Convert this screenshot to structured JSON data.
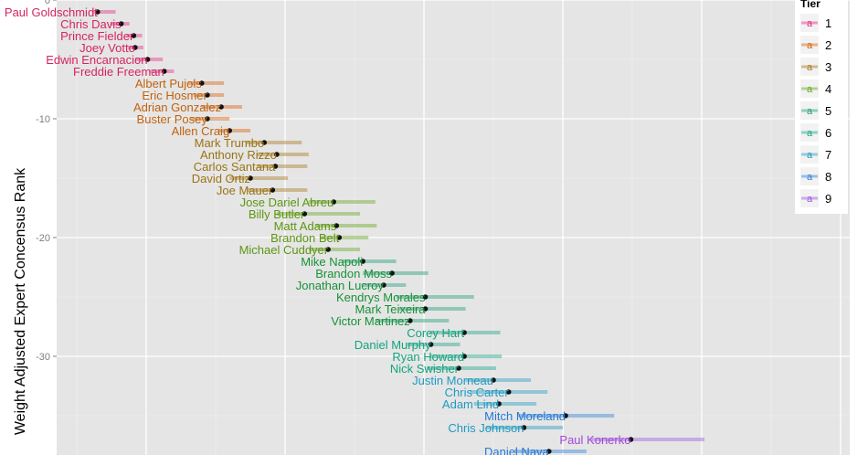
{
  "chart_data": {
    "type": "scatter",
    "title": "",
    "xlabel": "",
    "ylabel": "Weight Adjusted Expert Concensus Rank",
    "ylim": [
      -38.5,
      0.5
    ],
    "y_ticks": [
      -10,
      -20,
      -30
    ],
    "y_tick_labels": [
      "-10",
      "-20",
      "-30"
    ],
    "x_tick_values": [
      1,
      2,
      3,
      4,
      5,
      6
    ],
    "x_range": [
      0.55,
      6.2
    ],
    "grid": true,
    "legend": {
      "title": "Tier",
      "placement": "right",
      "key_glyph": "a",
      "entries": [
        {
          "label": "1",
          "color": "#E7298A"
        },
        {
          "label": "2",
          "color": "#D95F02"
        },
        {
          "label": "3",
          "color": "#A6761D"
        },
        {
          "label": "4",
          "color": "#66A61E"
        },
        {
          "label": "5",
          "color": "#1B9E77"
        },
        {
          "label": "6",
          "color": "#17A589"
        },
        {
          "label": "7",
          "color": "#1F9AC1"
        },
        {
          "label": "8",
          "color": "#2C7FD8"
        },
        {
          "label": "9",
          "color": "#9A57E0"
        }
      ]
    },
    "label_colors": {
      "1": "#D6245F",
      "2": "#C0620E",
      "3": "#9A7412",
      "4": "#5E9512",
      "5": "#169236",
      "6": "#12A47E",
      "7": "#1F9AC1",
      "8": "#2479D6",
      "9": "#A348D8"
    },
    "players": [
      {
        "name": "Paul Goldschmidt",
        "tier": 1,
        "rank": -1,
        "x": 0.65,
        "lo": 0.62,
        "hi": 0.78
      },
      {
        "name": "Chris Davis",
        "tier": 1,
        "rank": -2,
        "x": 0.82,
        "lo": 0.74,
        "hi": 0.88
      },
      {
        "name": "Prince Fielder",
        "tier": 1,
        "rank": -3,
        "x": 0.91,
        "lo": 0.86,
        "hi": 0.97
      },
      {
        "name": "Joey Votto",
        "tier": 1,
        "rank": -4,
        "x": 0.92,
        "lo": 0.87,
        "hi": 0.98
      },
      {
        "name": "Edwin Encarnacion",
        "tier": 1,
        "rank": -5,
        "x": 1.01,
        "lo": 0.92,
        "hi": 1.12
      },
      {
        "name": "Freddie Freeman",
        "tier": 1,
        "rank": -6,
        "x": 1.13,
        "lo": 1.03,
        "hi": 1.2
      },
      {
        "name": "Albert Pujols",
        "tier": 2,
        "rank": -7,
        "x": 1.4,
        "lo": 1.3,
        "hi": 1.56
      },
      {
        "name": "Eric Hosmer",
        "tier": 2,
        "rank": -8,
        "x": 1.44,
        "lo": 1.34,
        "hi": 1.56
      },
      {
        "name": "Adrian Gonzalez",
        "tier": 2,
        "rank": -9,
        "x": 1.54,
        "lo": 1.4,
        "hi": 1.69
      },
      {
        "name": "Buster Posey",
        "tier": 2,
        "rank": -10,
        "x": 1.44,
        "lo": 1.32,
        "hi": 1.6
      },
      {
        "name": "Allen Craig",
        "tier": 2,
        "rank": -11,
        "x": 1.6,
        "lo": 1.52,
        "hi": 1.75
      },
      {
        "name": "Mark Trumbo",
        "tier": 3,
        "rank": -12,
        "x": 1.85,
        "lo": 1.72,
        "hi": 2.12
      },
      {
        "name": "Anthony Rizzo",
        "tier": 3,
        "rank": -13,
        "x": 1.94,
        "lo": 1.8,
        "hi": 2.17
      },
      {
        "name": "Carlos Santana",
        "tier": 3,
        "rank": -14,
        "x": 1.93,
        "lo": 1.8,
        "hi": 2.16
      },
      {
        "name": "David Ortiz",
        "tier": 3,
        "rank": -15,
        "x": 1.75,
        "lo": 1.6,
        "hi": 2.02
      },
      {
        "name": "Joe Mauer",
        "tier": 3,
        "rank": -16,
        "x": 1.91,
        "lo": 1.73,
        "hi": 2.16
      },
      {
        "name": "Jose Dariel Abreu",
        "tier": 4,
        "rank": -17,
        "x": 2.35,
        "lo": 2.17,
        "hi": 2.65
      },
      {
        "name": "Billy Butler",
        "tier": 4,
        "rank": -18,
        "x": 2.14,
        "lo": 1.94,
        "hi": 2.54
      },
      {
        "name": "Matt Adams",
        "tier": 4,
        "rank": -19,
        "x": 2.37,
        "lo": 2.22,
        "hi": 2.66
      },
      {
        "name": "Brandon Belt",
        "tier": 4,
        "rank": -20,
        "x": 2.39,
        "lo": 2.26,
        "hi": 2.6
      },
      {
        "name": "Michael Cuddyer",
        "tier": 4,
        "rank": -21,
        "x": 2.31,
        "lo": 2.17,
        "hi": 2.54
      },
      {
        "name": "Mike Napoli",
        "tier": 5,
        "rank": -22,
        "x": 2.56,
        "lo": 2.41,
        "hi": 2.8
      },
      {
        "name": "Brandon Moss",
        "tier": 5,
        "rank": -23,
        "x": 2.77,
        "lo": 2.56,
        "hi": 3.03
      },
      {
        "name": "Jonathan Lucroy",
        "tier": 5,
        "rank": -24,
        "x": 2.71,
        "lo": 2.55,
        "hi": 2.87
      },
      {
        "name": "Kendrys Morales",
        "tier": 5,
        "rank": -25,
        "x": 3.01,
        "lo": 2.8,
        "hi": 3.36
      },
      {
        "name": "Mark Teixeira",
        "tier": 5,
        "rank": -26,
        "x": 3.01,
        "lo": 2.82,
        "hi": 3.3
      },
      {
        "name": "Victor Martinez",
        "tier": 5,
        "rank": -27,
        "x": 2.9,
        "lo": 2.65,
        "hi": 3.18
      },
      {
        "name": "Corey Hart",
        "tier": 6,
        "rank": -28,
        "x": 3.29,
        "lo": 3.04,
        "hi": 3.55
      },
      {
        "name": "Daniel Murphy",
        "tier": 6,
        "rank": -29,
        "x": 3.05,
        "lo": 2.88,
        "hi": 3.26
      },
      {
        "name": "Ryan Howard",
        "tier": 6,
        "rank": -30,
        "x": 3.29,
        "lo": 3.04,
        "hi": 3.56
      },
      {
        "name": "Nick Swisher",
        "tier": 6,
        "rank": -31,
        "x": 3.25,
        "lo": 3.02,
        "hi": 3.52
      },
      {
        "name": "Justin Morneau",
        "tier": 7,
        "rank": -32,
        "x": 3.5,
        "lo": 3.3,
        "hi": 3.77
      },
      {
        "name": "Chris Carter",
        "tier": 7,
        "rank": -33,
        "x": 3.61,
        "lo": 3.33,
        "hi": 3.89
      },
      {
        "name": "Adam Lind",
        "tier": 7,
        "rank": -34,
        "x": 3.54,
        "lo": 3.36,
        "hi": 3.81
      },
      {
        "name": "Mitch Moreland",
        "tier": 8,
        "rank": -35,
        "x": 4.02,
        "lo": 3.68,
        "hi": 4.37
      },
      {
        "name": "Chris Johnson",
        "tier": 7,
        "rank": -36,
        "x": 3.72,
        "lo": 3.45,
        "hi": 4.0
      },
      {
        "name": "Paul Konerko",
        "tier": 9,
        "rank": -37,
        "x": 4.49,
        "lo": 4.2,
        "hi": 5.02
      },
      {
        "name": "Daniel Nava",
        "tier": 8,
        "rank": -38,
        "x": 3.9,
        "lo": 3.65,
        "hi": 4.17
      }
    ]
  }
}
